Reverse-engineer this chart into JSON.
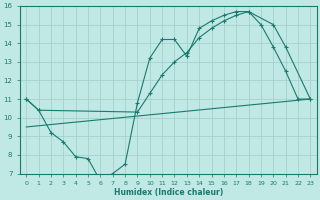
{
  "xlabel": "Humidex (Indice chaleur)",
  "xlim": [
    -0.5,
    23.5
  ],
  "ylim": [
    7,
    16
  ],
  "yticks": [
    7,
    8,
    9,
    10,
    11,
    12,
    13,
    14,
    15,
    16
  ],
  "xticks": [
    0,
    1,
    2,
    3,
    4,
    5,
    6,
    7,
    8,
    9,
    10,
    11,
    12,
    13,
    14,
    15,
    16,
    17,
    18,
    19,
    20,
    21,
    22,
    23
  ],
  "line_color": "#1a7a6e",
  "bg_color": "#c0e8e4",
  "grid_color": "#9ecece",
  "line1_x": [
    0,
    1,
    2,
    3,
    4,
    5,
    6,
    7,
    8,
    9,
    10,
    11,
    12,
    13,
    14,
    15,
    16,
    17,
    18,
    19,
    20,
    21,
    22,
    23
  ],
  "line1_y": [
    11.0,
    10.4,
    9.2,
    8.7,
    7.9,
    7.8,
    6.6,
    7.0,
    7.5,
    10.8,
    13.2,
    14.2,
    14.2,
    13.3,
    14.8,
    15.2,
    15.5,
    15.7,
    15.7,
    15.0,
    13.8,
    12.5,
    11.0,
    11.0
  ],
  "line2_x": [
    0,
    1,
    9,
    10,
    11,
    12,
    13,
    14,
    15,
    16,
    17,
    18,
    20,
    21,
    23
  ],
  "line2_y": [
    11.0,
    10.4,
    10.3,
    11.3,
    12.3,
    13.0,
    13.5,
    14.3,
    14.8,
    15.2,
    15.5,
    15.7,
    15.0,
    13.8,
    11.0
  ],
  "line3_x": [
    0,
    23
  ],
  "line3_y": [
    9.5,
    11.0
  ]
}
